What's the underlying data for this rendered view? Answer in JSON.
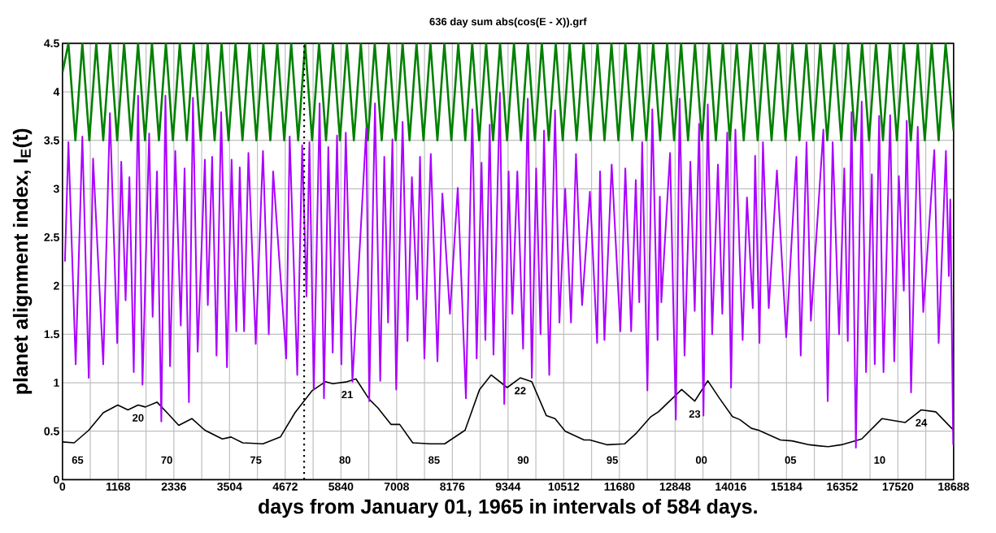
{
  "chart_data": {
    "type": "line",
    "title": "636 day sum abs(cos(E - X)).grf",
    "xlabel": "days from January 01, 1965 in intervals of 584  days.",
    "ylabel": "planet alignment index,  I$_{E}$(t)",
    "xlim": [
      0,
      18688
    ],
    "ylim": [
      0,
      4.5
    ],
    "xticks": [
      0,
      {
        "value": 584,
        "label": null
      },
      1168,
      {
        "value": 1752,
        "label": null
      },
      2336,
      {
        "value": 2920,
        "label": null
      },
      3504,
      {
        "value": 4088,
        "label": null
      },
      4672,
      {
        "value": 5256,
        "label": null
      },
      5840,
      {
        "value": 6424,
        "label": null
      },
      7008,
      {
        "value": 7592,
        "label": null
      },
      8176,
      {
        "value": 8760,
        "label": null
      },
      9344,
      {
        "value": 9928,
        "label": null
      },
      10512,
      {
        "value": 11096,
        "label": null
      },
      11680,
      {
        "value": 12264,
        "label": null
      },
      12848,
      {
        "value": 13432,
        "label": null
      },
      14016,
      {
        "value": 14600,
        "label": null
      },
      15184,
      {
        "value": 15768,
        "label": null
      },
      16352,
      {
        "value": 16936,
        "label": null
      },
      17520,
      {
        "value": 18104,
        "label": null
      },
      18688
    ],
    "yticks": [
      0,
      0.5,
      1,
      1.5,
      2,
      2.5,
      3,
      3.5,
      4,
      4.5
    ],
    "grid": true,
    "series": [
      {
        "color": "#008000",
        "x": [
          0,
          125,
          271,
          417,
          563,
          709,
          855,
          1001,
          1147,
          1293,
          1439,
          1585,
          1731,
          1877,
          2023,
          2169,
          2315,
          2461,
          2607,
          2753,
          2899,
          3045,
          3191,
          3337,
          3483,
          3629,
          3775,
          3921,
          4067,
          4213,
          4359,
          4505,
          4651,
          4797,
          4943,
          5089,
          5235,
          5381,
          5527,
          5673,
          5819,
          5965,
          6111,
          6257,
          6403,
          6549,
          6695,
          6841,
          6987,
          7133,
          7279,
          7425,
          7571,
          7717,
          7863,
          8009,
          8155,
          8301,
          8447,
          8593,
          8739,
          8885,
          9031,
          9177,
          9323,
          9469,
          9615,
          9761,
          9907,
          10053,
          10199,
          10345,
          10491,
          10637,
          10783,
          10929,
          11075,
          11221,
          11367,
          11513,
          11659,
          11805,
          11951,
          12097,
          12243,
          12389,
          12535,
          12681,
          12827,
          12973,
          13119,
          13265,
          13411,
          13557,
          13703,
          13849,
          13995,
          14141,
          14287,
          14433,
          14579,
          14725,
          14871,
          15017,
          15163,
          15309,
          15455,
          15601,
          15747,
          15893,
          16039,
          16185,
          16331,
          16477,
          16623,
          16769,
          16915,
          17061,
          17207,
          17353,
          17499,
          17645,
          17791,
          17937,
          18083,
          18229,
          18375,
          18521,
          18688
        ],
        "values": [
          4.2,
          4.5,
          3.5,
          4.5,
          3.5,
          4.5,
          3.5,
          4.5,
          3.5,
          4.5,
          3.5,
          4.5,
          3.5,
          4.5,
          3.5,
          4.5,
          3.5,
          4.5,
          3.5,
          4.5,
          3.5,
          4.5,
          3.5,
          4.5,
          3.5,
          4.5,
          3.5,
          4.5,
          3.5,
          4.5,
          3.5,
          4.5,
          3.5,
          4.5,
          3.5,
          4.5,
          3.5,
          4.5,
          3.5,
          4.5,
          3.5,
          4.5,
          3.5,
          4.5,
          3.5,
          4.5,
          3.5,
          4.5,
          3.5,
          4.5,
          3.5,
          4.5,
          3.5,
          4.5,
          3.5,
          4.5,
          3.5,
          4.5,
          3.5,
          4.5,
          3.5,
          4.5,
          3.5,
          4.5,
          3.5,
          4.5,
          3.5,
          4.5,
          3.5,
          4.5,
          3.5,
          4.5,
          3.5,
          4.5,
          3.5,
          4.5,
          3.5,
          4.5,
          3.5,
          4.5,
          3.5,
          4.5,
          3.5,
          4.5,
          3.5,
          4.5,
          3.5,
          4.5,
          3.5,
          4.5,
          3.5,
          4.5,
          3.5,
          4.5,
          3.5,
          4.5,
          3.5,
          4.5,
          3.5,
          4.5,
          3.5,
          4.5,
          3.5,
          4.5,
          3.5,
          4.5,
          3.5,
          4.5,
          3.5,
          4.5,
          3.5,
          4.5,
          3.5,
          4.5,
          3.5,
          4.5,
          3.5,
          4.5,
          3.5,
          4.5,
          3.5,
          4.5,
          3.5,
          4.5,
          3.5,
          4.5,
          3.5,
          4.5,
          3.6
        ]
      },
      {
        "color": "#000000",
        "x": [
          0,
          246,
          551,
          855,
          1160,
          1373,
          1586,
          1738,
          1982,
          2195,
          2439,
          2713,
          2987,
          3352,
          3535,
          3779,
          4205,
          4570,
          4875,
          5240,
          5514,
          5667,
          5971,
          6154,
          6433,
          6615,
          6889,
          7072,
          7346,
          7712,
          8016,
          8443,
          8747,
          8990,
          9326,
          9600,
          9843,
          10148,
          10330,
          10543,
          10939,
          11061,
          11427,
          11792,
          12036,
          12340,
          12498,
          12985,
          13259,
          13533,
          13777,
          14051,
          14203,
          14447,
          14599,
          15056,
          15300,
          15665,
          15848,
          16061,
          16335,
          16761,
          17187,
          17675,
          18010,
          18314,
          18649,
          18688
        ],
        "values": [
          0.39,
          0.38,
          0.51,
          0.69,
          0.77,
          0.72,
          0.77,
          0.75,
          0.8,
          0.69,
          0.56,
          0.63,
          0.51,
          0.42,
          0.44,
          0.38,
          0.37,
          0.44,
          0.69,
          0.92,
          1.01,
          0.99,
          1.01,
          1.04,
          0.83,
          0.74,
          0.57,
          0.57,
          0.38,
          0.37,
          0.37,
          0.51,
          0.93,
          1.08,
          0.95,
          1.05,
          1.01,
          0.66,
          0.63,
          0.5,
          0.41,
          0.41,
          0.36,
          0.37,
          0.48,
          0.65,
          0.7,
          0.93,
          0.81,
          1.02,
          0.84,
          0.65,
          0.62,
          0.53,
          0.51,
          0.41,
          0.4,
          0.36,
          0.35,
          0.34,
          0.36,
          0.42,
          0.63,
          0.59,
          0.72,
          0.7,
          0.53,
          0.51
        ]
      },
      {
        "color": "#aa00ff",
        "x": [
          52,
          125,
          277,
          417,
          551,
          642,
          855,
          995,
          1148,
          1233,
          1324,
          1404,
          1495,
          1586,
          1678,
          1818,
          1891,
          1982,
          2073,
          2159,
          2256,
          2366,
          2481,
          2561,
          2652,
          2737,
          2835,
          2987,
          3048,
          3139,
          3231,
          3328,
          3450,
          3547,
          3645,
          3718,
          3809,
          3900,
          4053,
          4205,
          4327,
          4418,
          4692,
          4765,
          4924,
          5027,
          5118,
          5179,
          5271,
          5393,
          5484,
          5575,
          5667,
          5758,
          5849,
          5941,
          6081,
          6372,
          6433,
          6554,
          6664,
          6749,
          6828,
          6920,
          6999,
          7133,
          7236,
          7328,
          7437,
          7498,
          7590,
          7724,
          7864,
          7967,
          8126,
          8290,
          8461,
          8595,
          8686,
          8789,
          8869,
          8960,
          9039,
          9173,
          9265,
          9356,
          9435,
          9539,
          9660,
          9758,
          9843,
          9934,
          10026,
          10099,
          10209,
          10330,
          10422,
          10543,
          10665,
          10769,
          10897,
          11061,
          11213,
          11274,
          11366,
          11518,
          11700,
          11804,
          11926,
          12023,
          12096,
          12157,
          12267,
          12370,
          12480,
          12528,
          12559,
          12742,
          12863,
          12943,
          13046,
          13168,
          13259,
          13351,
          13442,
          13533,
          13625,
          13746,
          13838,
          13941,
          14021,
          14112,
          14264,
          14355,
          14477,
          14526,
          14617,
          14690,
          14812,
          14983,
          15178,
          15391,
          15482,
          15604,
          15695,
          15957,
          16048,
          16152,
          16286,
          16396,
          16469,
          16548,
          16639,
          16761,
          16852,
          16974,
          17035,
          17126,
          17218,
          17358,
          17443,
          17540,
          17644,
          17705,
          17796,
          17936,
          18052,
          18284,
          18375,
          18527,
          18588,
          18619,
          18680
        ],
        "values": [
          2.25,
          3.48,
          1.19,
          3.54,
          1.05,
          3.31,
          1.19,
          3.78,
          1.41,
          3.28,
          1.85,
          3.12,
          1.11,
          3.96,
          0.98,
          3.57,
          1.68,
          3.18,
          0.6,
          3.96,
          1.17,
          3.39,
          1.59,
          3.21,
          0.8,
          3.94,
          1.32,
          3.3,
          1.8,
          3.33,
          1.28,
          3.79,
          1.16,
          3.3,
          1.53,
          3.22,
          1.53,
          3.37,
          1.4,
          3.39,
          1.5,
          3.18,
          1.25,
          3.54,
          1.08,
          3.45,
          1.89,
          3.48,
          0.93,
          3.88,
          0.84,
          3.43,
          1.31,
          3.55,
          1.19,
          3.58,
          1.01,
          3.63,
          0.81,
          3.88,
          1.02,
          3.33,
          1.62,
          3.51,
          0.93,
          3.69,
          1.43,
          3.12,
          1.86,
          3.33,
          1.25,
          3.36,
          1.22,
          2.95,
          1.71,
          3.01,
          0.84,
          3.82,
          1.25,
          3.27,
          1.44,
          3.66,
          1.29,
          3.99,
          0.78,
          3.18,
          1.71,
          3.18,
          1.35,
          3.93,
          1.05,
          3.21,
          1.5,
          3.6,
          1.08,
          3.81,
          1.62,
          3.0,
          1.62,
          3.36,
          1.8,
          2.97,
          1.41,
          3.18,
          1.44,
          3.25,
          1.53,
          3.21,
          1.53,
          3.09,
          1.83,
          3.48,
          0.92,
          3.82,
          1.44,
          2.92,
          1.83,
          3.37,
          0.62,
          3.93,
          1.28,
          3.28,
          1.74,
          3.67,
          0.66,
          3.87,
          1.5,
          3.25,
          1.71,
          3.58,
          0.95,
          3.61,
          1.44,
          2.91,
          1.77,
          3.34,
          1.41,
          3.48,
          1.77,
          3.19,
          1.47,
          3.33,
          1.28,
          3.48,
          1.64,
          3.61,
          0.81,
          3.48,
          1.5,
          3.21,
          1.43,
          3.79,
          0.33,
          3.9,
          1.11,
          3.15,
          1.19,
          3.75,
          1.11,
          3.76,
          1.22,
          3.13,
          1.95,
          3.7,
          0.9,
          3.64,
          1.73,
          3.4,
          1.41,
          3.39,
          2.1,
          2.89,
          0.36
        ]
      }
    ],
    "ref_lines": [
      {
        "axis": "x",
        "value": 5070,
        "color": "#000000",
        "line_style": "dotted"
      }
    ],
    "annotations": [
      "65",
      "70",
      "75",
      "80",
      "85",
      "90",
      "95",
      "00",
      "05",
      "10",
      {
        "text": "20",
        "x": 1586,
        "y": 0.77
      },
      {
        "text": "21",
        "x": 5971,
        "y": 1.01
      },
      {
        "text": "22",
        "x": 9600,
        "y": 1.05
      },
      {
        "text": "23",
        "x": 13259,
        "y": 0.81
      },
      {
        "text": "24",
        "x": 18010,
        "y": 0.72
      }
    ]
  }
}
